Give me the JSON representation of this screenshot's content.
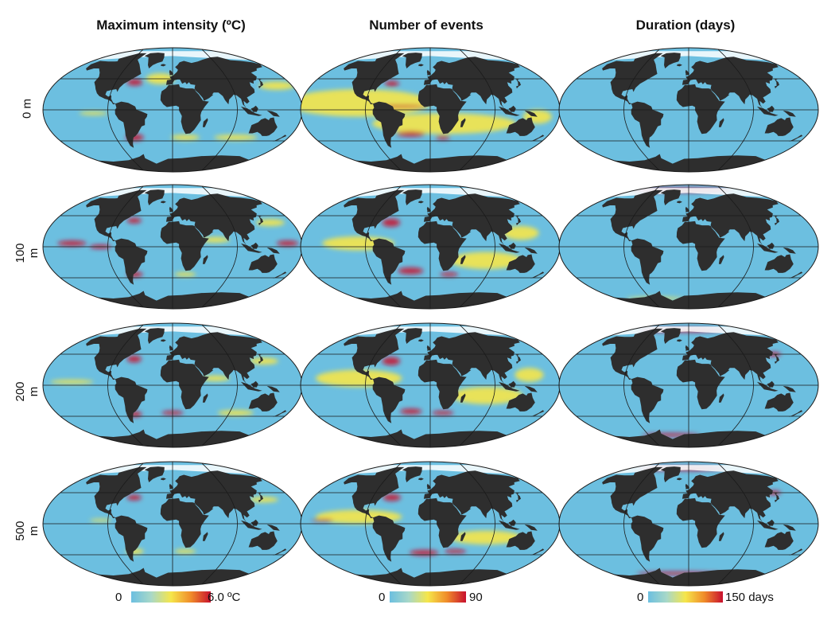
{
  "columns": [
    {
      "title": "Maximum intensity (ºC)",
      "scale_min": "0",
      "scale_max": "6.0 ºC",
      "palette": "intensity"
    },
    {
      "title": "Number of events",
      "scale_min": "0",
      "scale_max": "90",
      "palette": "events"
    },
    {
      "title": "Duration (days)",
      "scale_min": "0",
      "scale_max": "150 days",
      "palette": "duration"
    }
  ],
  "rows": [
    {
      "label": "0 m"
    },
    {
      "label": "100 m"
    },
    {
      "label": "200 m"
    },
    {
      "label": "500 m"
    }
  ],
  "colors": {
    "ocean_low": "#6cbfe0",
    "ocean_mid": "#f5e64a",
    "ocean_high": "#c8102e",
    "land": "#2e2e2e",
    "ice": "#ffffff",
    "grid": "#1a1a1a"
  },
  "colorbar_stops": [
    "#6cbfe0",
    "#a8d8c8",
    "#f5e64a",
    "#f08c2a",
    "#c8102e"
  ]
}
